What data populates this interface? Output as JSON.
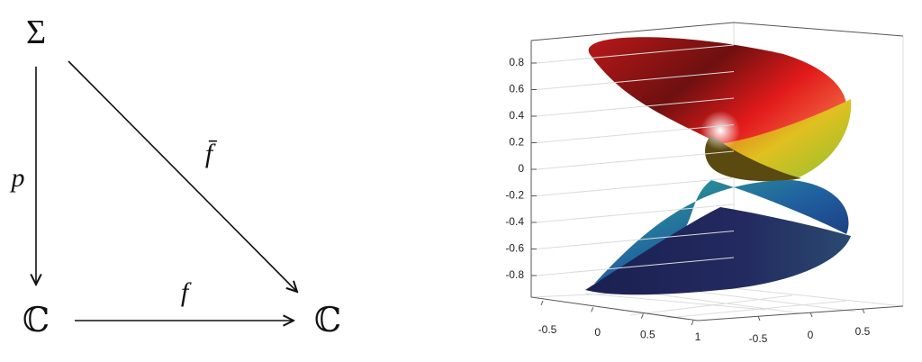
{
  "diagram": {
    "nodes": [
      {
        "label": "Σ"
      },
      {
        "label": "ℂ"
      },
      {
        "label": "ℂ"
      }
    ],
    "arrows": [
      {
        "label": "p"
      },
      {
        "label": "f̄"
      },
      {
        "label": "f"
      }
    ]
  },
  "plot": {
    "zticks": [
      0.8,
      0.6,
      0.4,
      0.2,
      0,
      -0.2,
      -0.4,
      -0.6,
      -0.8
    ],
    "xticks": [
      -0.5,
      0,
      0.5,
      1
    ],
    "yticks": [
      -0.5,
      0,
      0.5
    ]
  }
}
